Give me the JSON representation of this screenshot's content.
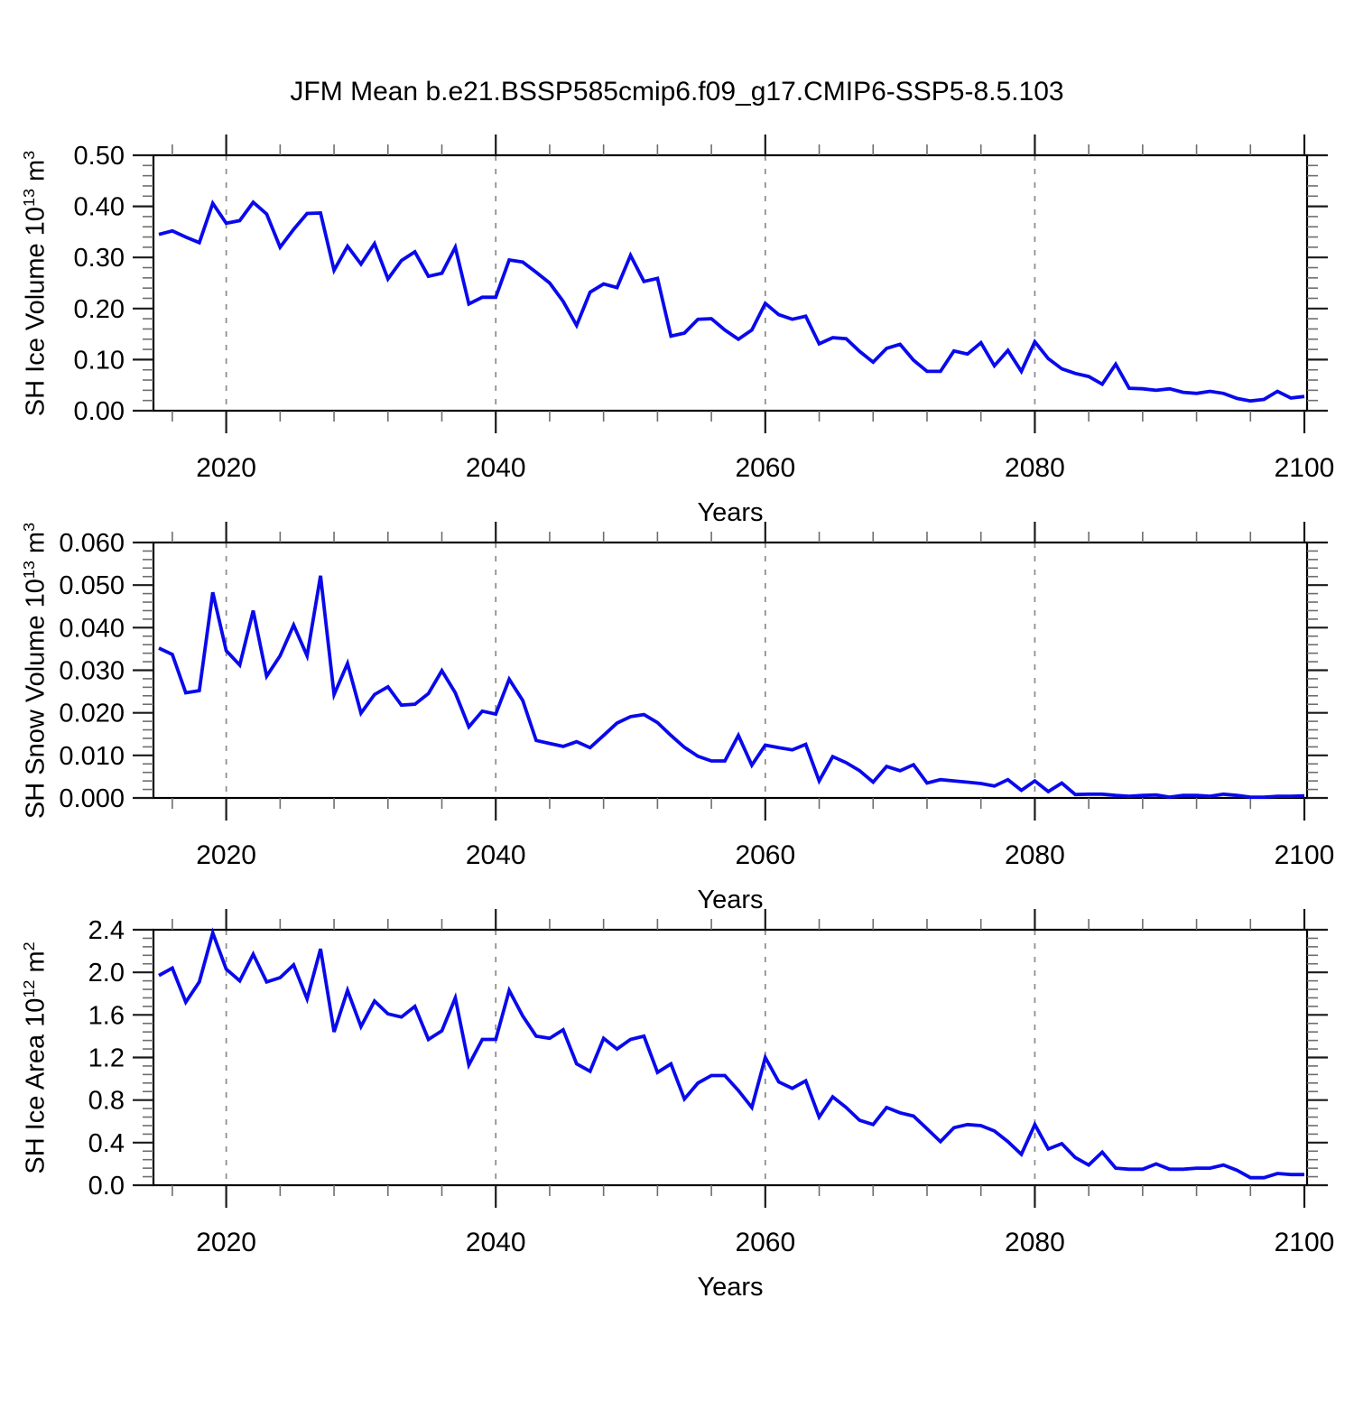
{
  "title": "JFM Mean b.e21.BSSP585cmip6.f09_g17.CMIP6-SSP5-8.5.103",
  "x_label": "Years",
  "colors": {
    "line": "#0909EC",
    "axis": "#000000",
    "major_tick": "#1a1a1a",
    "minor_tick": "#6e6e6e",
    "grid": "#8a8a8a",
    "text": "#000000",
    "background": "#ffffff"
  },
  "years": [
    2015,
    2016,
    2017,
    2018,
    2019,
    2020,
    2021,
    2022,
    2023,
    2024,
    2025,
    2026,
    2027,
    2028,
    2029,
    2030,
    2031,
    2032,
    2033,
    2034,
    2035,
    2036,
    2037,
    2038,
    2039,
    2040,
    2041,
    2042,
    2043,
    2044,
    2045,
    2046,
    2047,
    2048,
    2049,
    2050,
    2051,
    2052,
    2053,
    2054,
    2055,
    2056,
    2057,
    2058,
    2059,
    2060,
    2061,
    2062,
    2063,
    2064,
    2065,
    2066,
    2067,
    2068,
    2069,
    2070,
    2071,
    2072,
    2073,
    2074,
    2075,
    2076,
    2077,
    2078,
    2079,
    2080,
    2081,
    2082,
    2083,
    2084,
    2085,
    2086,
    2087,
    2088,
    2089,
    2090,
    2091,
    2092,
    2093,
    2094,
    2095,
    2096,
    2097,
    2098,
    2099,
    2100
  ],
  "x_axis": {
    "xlim": [
      2014.6,
      2100.2
    ],
    "xticks": [
      2020,
      2040,
      2060,
      2080,
      2100
    ],
    "xminor_step": 4,
    "grid_years": [
      2020,
      2040,
      2060,
      2080
    ],
    "grid_style": "dashed"
  },
  "chart_data": [
    {
      "type": "line",
      "ylabel": "SH Ice Volume 10^13 m^3",
      "ylim": [
        0,
        0.5
      ],
      "ytick_step": 0.1,
      "yminor_step": 0.02,
      "ydecimals": 2,
      "xlabel": "Years",
      "legend": null,
      "values": [
        0.345,
        0.352,
        0.34,
        0.329,
        0.406,
        0.367,
        0.372,
        0.408,
        0.385,
        0.32,
        0.355,
        0.386,
        0.387,
        0.275,
        0.322,
        0.287,
        0.327,
        0.258,
        0.294,
        0.311,
        0.263,
        0.269,
        0.32,
        0.209,
        0.222,
        0.222,
        0.295,
        0.291,
        0.271,
        0.25,
        0.214,
        0.167,
        0.232,
        0.248,
        0.241,
        0.304,
        0.253,
        0.259,
        0.146,
        0.152,
        0.179,
        0.18,
        0.158,
        0.14,
        0.158,
        0.21,
        0.188,
        0.179,
        0.185,
        0.131,
        0.143,
        0.141,
        0.116,
        0.095,
        0.122,
        0.13,
        0.099,
        0.077,
        0.077,
        0.117,
        0.111,
        0.133,
        0.088,
        0.118,
        0.077,
        0.135,
        0.102,
        0.082,
        0.073,
        0.067,
        0.052,
        0.091,
        0.044,
        0.043,
        0.04,
        0.043,
        0.036,
        0.034,
        0.038,
        0.034,
        0.024,
        0.019,
        0.022,
        0.038,
        0.025,
        0.028
      ]
    },
    {
      "type": "line",
      "ylabel": "SH Snow Volume 10^13 m^3",
      "ylim": [
        0,
        0.06
      ],
      "ytick_step": 0.01,
      "yminor_step": 0.002,
      "ydecimals": 3,
      "xlabel": "Years",
      "legend": null,
      "values": [
        0.0352,
        0.0337,
        0.0247,
        0.0252,
        0.0483,
        0.0346,
        0.0312,
        0.044,
        0.0286,
        0.0334,
        0.0406,
        0.0334,
        0.0522,
        0.0243,
        0.0316,
        0.0199,
        0.0243,
        0.0261,
        0.0218,
        0.022,
        0.0245,
        0.0299,
        0.0247,
        0.0167,
        0.0204,
        0.0197,
        0.0279,
        0.0229,
        0.0135,
        0.0128,
        0.0121,
        0.0132,
        0.0118,
        0.0147,
        0.0176,
        0.0191,
        0.0196,
        0.0177,
        0.0147,
        0.0119,
        0.0098,
        0.0087,
        0.0087,
        0.0147,
        0.0077,
        0.0124,
        0.0118,
        0.0113,
        0.0126,
        0.004,
        0.0097,
        0.0083,
        0.0064,
        0.0037,
        0.0074,
        0.0064,
        0.0078,
        0.0035,
        0.0043,
        0.004,
        0.0037,
        0.0034,
        0.0028,
        0.0043,
        0.0018,
        0.004,
        0.0015,
        0.0035,
        0.0008,
        0.0009,
        0.0009,
        0.0006,
        0.0004,
        0.0006,
        0.0007,
        0.0002,
        0.0006,
        0.0006,
        0.0004,
        0.0009,
        0.0006,
        0.0002,
        0.0002,
        0.0004,
        0.0004,
        0.0005
      ]
    },
    {
      "type": "line",
      "ylabel": "SH Ice Area 10^12 m^2",
      "ylim": [
        0,
        2.4
      ],
      "ytick_step": 0.4,
      "yminor_step": 0.08,
      "ydecimals": 1,
      "xlabel": "Years",
      "legend": null,
      "values": [
        1.97,
        2.04,
        1.72,
        1.91,
        2.37,
        2.03,
        1.92,
        2.17,
        1.91,
        1.95,
        2.07,
        1.75,
        2.22,
        1.44,
        1.83,
        1.49,
        1.73,
        1.61,
        1.58,
        1.68,
        1.37,
        1.45,
        1.76,
        1.13,
        1.37,
        1.37,
        1.83,
        1.59,
        1.4,
        1.38,
        1.46,
        1.14,
        1.07,
        1.38,
        1.28,
        1.37,
        1.4,
        1.06,
        1.14,
        0.81,
        0.96,
        1.03,
        1.03,
        0.89,
        0.73,
        1.2,
        0.97,
        0.91,
        0.98,
        0.64,
        0.83,
        0.73,
        0.61,
        0.57,
        0.73,
        0.68,
        0.65,
        0.53,
        0.41,
        0.54,
        0.57,
        0.56,
        0.51,
        0.41,
        0.29,
        0.57,
        0.34,
        0.39,
        0.26,
        0.19,
        0.31,
        0.16,
        0.15,
        0.15,
        0.2,
        0.15,
        0.15,
        0.16,
        0.16,
        0.19,
        0.14,
        0.07,
        0.07,
        0.11,
        0.1,
        0.1
      ]
    }
  ]
}
